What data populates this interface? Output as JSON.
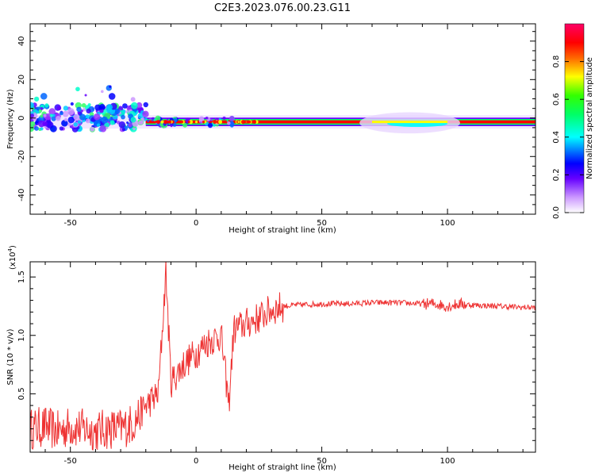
{
  "figure": {
    "title": "C2E3.2023.076.00.23.G11"
  },
  "chart_data": [
    {
      "type": "heatmap",
      "title": "",
      "xlabel": "Height of straight line (km)",
      "ylabel": "Frequency (Hz)",
      "xlim": [
        -66,
        135
      ],
      "ylim": [
        -50,
        49
      ],
      "xticks": [
        "-50",
        "0",
        "50",
        "100"
      ],
      "yticks": [
        "-40",
        "-20",
        "0",
        "20",
        "40"
      ],
      "colorbar": {
        "label": "Normalized spectral amplitude",
        "range": [
          0,
          1
        ],
        "ticks": [
          "0.0",
          "0.2",
          "0.4",
          "0.6",
          "0.8"
        ],
        "colors": [
          "#ffffff",
          "#cc99ff",
          "#6600ff",
          "#0000ff",
          "#00ffff",
          "#00ff66",
          "#33ff00",
          "#ffff00",
          "#ff6600",
          "#ff0000",
          "#ff0066"
        ]
      },
      "features": [
        {
          "name": "scattered energy",
          "x_range": [
            -66,
            -20
          ],
          "freq_range": [
            -8,
            18
          ]
        },
        {
          "name": "main band",
          "x_range": [
            -20,
            135
          ],
          "freq_center": -2
        }
      ]
    },
    {
      "type": "line",
      "title": "",
      "xlabel": "Height of straight line (km)",
      "ylabel": "SNR (10 * v/v)",
      "scale_label": "(x10",
      "scale_exponent": "4",
      "xlim": [
        -66,
        135
      ],
      "ylim": [
        0,
        1.63
      ],
      "xticks": [
        "-50",
        "0",
        "50",
        "100"
      ],
      "yticks": [
        "0.5",
        "1.0",
        "1.5"
      ],
      "color": "#ee3333",
      "series": [
        {
          "x": [
            -66,
            -60,
            -55,
            -50,
            -45,
            -40,
            -35,
            -30,
            -25,
            -20,
            -15,
            -12,
            -10,
            -5,
            0,
            5,
            10,
            13,
            15,
            20,
            25,
            30,
            35,
            40,
            50,
            60,
            70,
            80,
            90,
            95,
            100,
            105,
            110,
            120,
            130,
            135
          ],
          "y": [
            0.2,
            0.22,
            0.18,
            0.22,
            0.2,
            0.18,
            0.2,
            0.2,
            0.25,
            0.4,
            0.5,
            1.55,
            0.6,
            0.75,
            0.85,
            0.95,
            1.0,
            0.4,
            1.05,
            1.1,
            1.15,
            1.22,
            1.25,
            1.26,
            1.27,
            1.27,
            1.28,
            1.28,
            1.27,
            1.27,
            1.25,
            1.27,
            1.26,
            1.25,
            1.24,
            1.24
          ]
        }
      ]
    }
  ]
}
